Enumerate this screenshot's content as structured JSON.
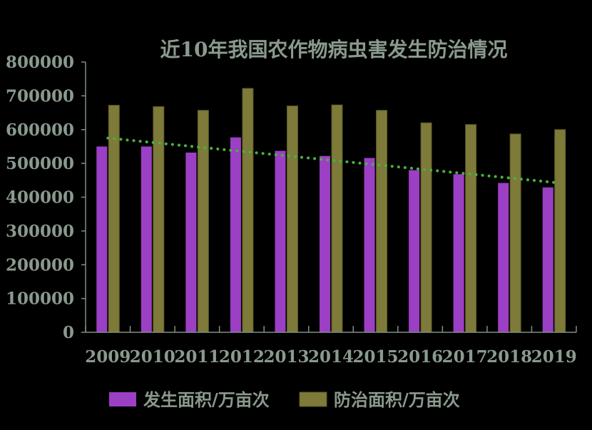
{
  "chart_data": {
    "type": "bar",
    "title": "近10年我国农作物病虫害发生防治情况",
    "categories": [
      "2009",
      "2010",
      "2011",
      "2012",
      "2013",
      "2014",
      "2015",
      "2016",
      "2017",
      "2018",
      "2019"
    ],
    "series": [
      {
        "name": "发生面积/万亩次",
        "color": "#9b3fc4",
        "values": [
          550000,
          550000,
          532000,
          577000,
          537000,
          522000,
          516000,
          480000,
          468000,
          442000,
          429000
        ]
      },
      {
        "name": "防治面积/万亩次",
        "color": "#7d7a3a",
        "values": [
          672000,
          668000,
          657000,
          722000,
          670000,
          673000,
          657000,
          620000,
          615000,
          587000,
          600000
        ]
      }
    ],
    "trendline": {
      "of_series": "发生面积/万亩次",
      "type": "linear",
      "color": "#4caf40",
      "style": "dotted"
    },
    "ylim": [
      0,
      800000
    ],
    "yticks": [
      "0",
      "100000",
      "200000",
      "300000",
      "400000",
      "500000",
      "600000",
      "700000",
      "800000"
    ],
    "xlabel": "",
    "ylabel": "",
    "grid": false,
    "legend": "bottom"
  }
}
